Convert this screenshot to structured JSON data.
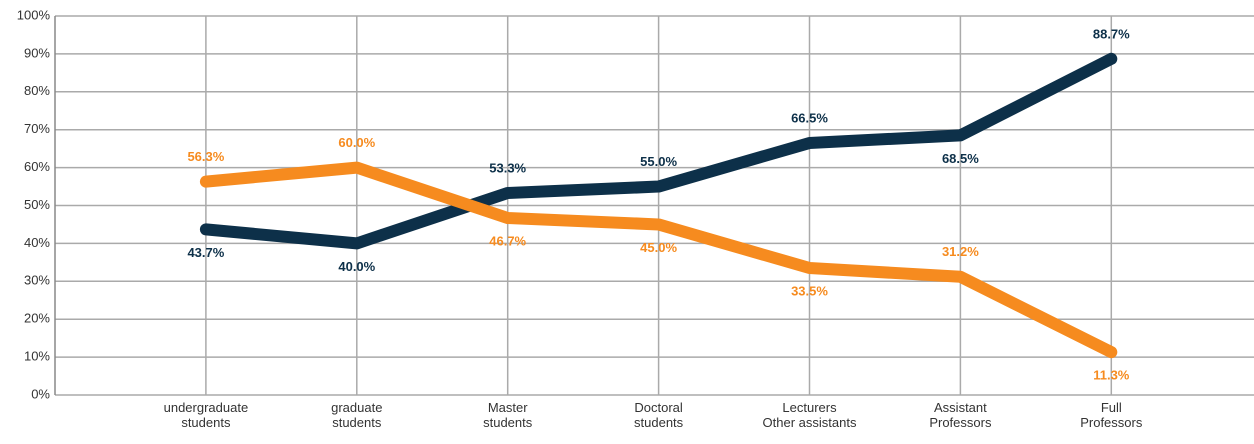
{
  "chart_data": {
    "type": "line",
    "categories": [
      "undergraduate\nstudents",
      "graduate\nstudents",
      "Master\nstudents",
      "Doctoral\nstudents",
      "Lecturers\nOther assistants",
      "Assistant\nProfessors",
      "Full\nProfessors"
    ],
    "series": [
      {
        "color": "#0d3049",
        "values": [
          43.7,
          40.0,
          53.3,
          55.0,
          66.5,
          68.5,
          88.7
        ],
        "value_labels": [
          "43.7%",
          "40.0%",
          "53.3%",
          "55.0%",
          "66.5%",
          "68.5%",
          "88.7%"
        ]
      },
      {
        "color": "#f68b1f",
        "values": [
          56.3,
          60.0,
          46.7,
          45.0,
          33.5,
          31.2,
          11.3
        ],
        "value_labels": [
          "56.3%",
          "60.0%",
          "46.7%",
          "45.0%",
          "33.5%",
          "31.2%",
          "11.3%"
        ]
      }
    ],
    "ylim": [
      0,
      100
    ],
    "yticks": [
      {
        "value": 0,
        "label": "0%"
      },
      {
        "value": 10,
        "label": "10%"
      },
      {
        "value": 20,
        "label": "20%"
      },
      {
        "value": 30,
        "label": "30%"
      },
      {
        "value": 40,
        "label": "40%"
      },
      {
        "value": 50,
        "label": "50%"
      },
      {
        "value": 60,
        "label": "60%"
      },
      {
        "value": 70,
        "label": "70%"
      },
      {
        "value": 80,
        "label": "80%"
      },
      {
        "value": 90,
        "label": "90%"
      },
      {
        "value": 100,
        "label": "100%"
      }
    ],
    "grid": true
  }
}
